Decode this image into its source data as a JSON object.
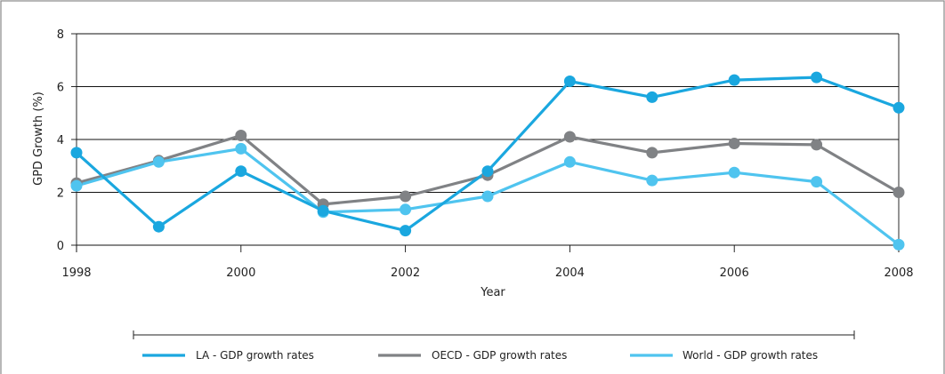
{
  "chart_data": {
    "type": "line",
    "title": "",
    "xlabel": "Year",
    "ylabel": "GPD Growth (%)",
    "x": [
      1998,
      1999,
      2000,
      2001,
      2002,
      2003,
      2004,
      2005,
      2006,
      2007,
      2008
    ],
    "x_ticks": [
      "1998",
      "2000",
      "2002",
      "2004",
      "2006",
      "2008"
    ],
    "y_ticks": [
      "0",
      "2",
      "4",
      "6",
      "8"
    ],
    "xlim": [
      1998,
      2008
    ],
    "ylim": [
      0,
      8
    ],
    "grid": "horizontal",
    "legend_position": "bottom",
    "series": [
      {
        "name": "LA - GDP growth rates",
        "color": "#1aa7df",
        "values": [
          3.5,
          0.7,
          2.8,
          1.3,
          0.55,
          2.8,
          6.2,
          5.6,
          6.25,
          6.35,
          5.2
        ]
      },
      {
        "name": "OECD - GDP growth rates",
        "color": "#808285",
        "values": [
          2.35,
          3.2,
          4.15,
          1.55,
          1.85,
          2.65,
          4.1,
          3.5,
          3.85,
          3.8,
          2.0
        ]
      },
      {
        "name": "World - GDP growth rates",
        "color": "#4fc4ef",
        "values": [
          2.25,
          3.15,
          3.65,
          1.25,
          1.35,
          1.85,
          3.15,
          2.45,
          2.75,
          2.4,
          0.02
        ]
      }
    ]
  }
}
